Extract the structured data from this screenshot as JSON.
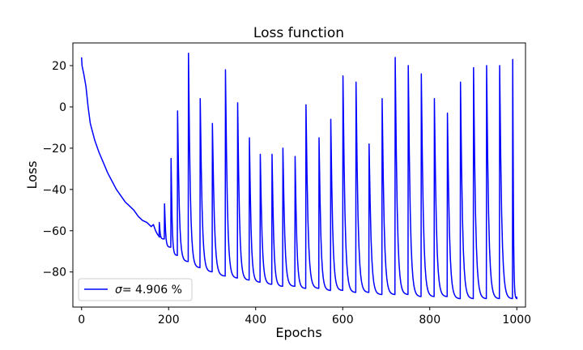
{
  "chart_data": {
    "type": "line",
    "title": "Loss function",
    "xlabel": "Epochs",
    "ylabel": "Loss",
    "xlim": [
      -20,
      1020
    ],
    "ylim": [
      -97,
      31
    ],
    "xticks": [
      0,
      200,
      400,
      600,
      800,
      1000
    ],
    "yticks": [
      20,
      0,
      -20,
      -40,
      -60,
      -80
    ],
    "grid": false,
    "legend_placement": "lower-left",
    "legend_text_prefix": "σ",
    "legend_text_suffix": "=  4.906 %",
    "series": [
      {
        "color": "#0000ff",
        "decay": [
          [
            0,
            24
          ],
          [
            1,
            20
          ],
          [
            5,
            16
          ],
          [
            10,
            10
          ],
          [
            15,
            0
          ],
          [
            20,
            -8
          ],
          [
            30,
            -16
          ],
          [
            40,
            -22
          ],
          [
            50,
            -27
          ],
          [
            60,
            -32
          ],
          [
            70,
            -36
          ],
          [
            80,
            -40
          ],
          [
            90,
            -43
          ],
          [
            100,
            -46
          ],
          [
            110,
            -48
          ],
          [
            120,
            -50
          ],
          [
            130,
            -53
          ],
          [
            140,
            -55
          ],
          [
            150,
            -56
          ],
          [
            160,
            -58
          ],
          [
            165,
            -57
          ],
          [
            170,
            -60
          ],
          [
            175,
            -62
          ],
          [
            180,
            -63
          ]
        ],
        "spikes": [
          [
            178,
            -56,
            -64
          ],
          [
            190,
            -47,
            -68
          ],
          [
            205,
            -25,
            -72
          ],
          [
            220,
            -2,
            -75
          ],
          [
            245,
            26,
            -78
          ],
          [
            272,
            4,
            -80
          ],
          [
            300,
            -8,
            -82
          ],
          [
            330,
            18,
            -83
          ],
          [
            358,
            2,
            -84
          ],
          [
            385,
            -15,
            -85
          ],
          [
            410,
            -23,
            -86
          ],
          [
            437,
            -23,
            -87
          ],
          [
            462,
            -20,
            -87
          ],
          [
            490,
            -24,
            -88
          ],
          [
            515,
            1,
            -88
          ],
          [
            545,
            -15,
            -89
          ],
          [
            572,
            -6,
            -89
          ],
          [
            600,
            15,
            -90
          ],
          [
            630,
            12,
            -90
          ],
          [
            660,
            -18,
            -91
          ],
          [
            690,
            4,
            -91
          ],
          [
            720,
            24,
            -91
          ],
          [
            750,
            20,
            -92
          ],
          [
            780,
            16,
            -92
          ],
          [
            810,
            4,
            -92
          ],
          [
            840,
            -3,
            -93
          ],
          [
            870,
            12,
            -93
          ],
          [
            900,
            19,
            -93
          ],
          [
            930,
            20,
            -93
          ],
          [
            960,
            20,
            -93
          ],
          [
            990,
            23,
            -93
          ]
        ],
        "end": [
          1000,
          -92
        ]
      }
    ]
  }
}
